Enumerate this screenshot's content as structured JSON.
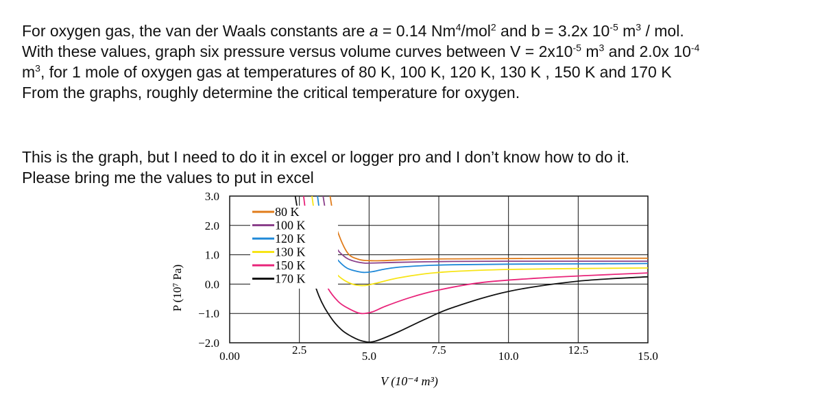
{
  "question": {
    "line1": [
      "For oxygen gas, the van der Waals constants are ",
      "a",
      " = 0.14 Nm",
      "4",
      "/mol",
      "2",
      " and b = 3.2x 10",
      "-5",
      " m",
      "3",
      " / mol."
    ],
    "line2": [
      "With these values, graph six pressure versus volume curves between V = 2x10",
      "-5",
      " m",
      "3",
      " and 2.0x 10",
      "-4"
    ],
    "line3": [
      "m",
      "3",
      ", for 1 mole of oxygen gas at temperatures of 80 K, 100 K, 120 K, 130 K , 150 K and 170 K"
    ],
    "line4": "From the graphs, roughly determine the critical temperature for oxygen."
  },
  "request": {
    "line1": "This is the graph, but I need to do it in excel or logger pro and I don’t know how to do it.",
    "line2": "Please bring me the values to put in excel"
  },
  "chart_data": {
    "type": "line",
    "xlabel": "V (10⁻⁴ m³)",
    "ylabel": "P (10⁷ Pa)",
    "xlim": [
      0,
      15
    ],
    "ylim": [
      -2,
      3
    ],
    "x_ticks": [
      "0.00",
      "2.5",
      "5.0",
      "7.5",
      "10.0",
      "12.5",
      "15.0"
    ],
    "y_ticks": [
      "3.0",
      "2.0",
      "1.0",
      "0.0",
      "−1.0",
      "−2.0"
    ],
    "grid": true,
    "legend_position": "top-left",
    "series": [
      {
        "name": "80 K",
        "color": "#e07b1a",
        "x": [
          3.6,
          3.8,
          4.2,
          4.6,
          5.0,
          5.5,
          6.0,
          7.0,
          8.0,
          10.0,
          12.5,
          15.0
        ],
        "y": [
          3.0,
          2.0,
          1.1,
          0.85,
          0.8,
          0.8,
          0.82,
          0.85,
          0.86,
          0.87,
          0.88,
          0.88
        ]
      },
      {
        "name": "100 K",
        "color": "#8a3f8a",
        "x": [
          3.35,
          3.5,
          3.8,
          4.1,
          4.4,
          4.8,
          5.2,
          6.0,
          7.0,
          8.0,
          10.0,
          12.5,
          15.0
        ],
        "y": [
          3.0,
          2.2,
          1.3,
          0.95,
          0.8,
          0.72,
          0.72,
          0.74,
          0.76,
          0.77,
          0.78,
          0.78,
          0.78
        ]
      },
      {
        "name": "120 K",
        "color": "#1e88d8",
        "x": [
          3.15,
          3.3,
          3.6,
          3.9,
          4.2,
          4.5,
          4.8,
          5.1,
          5.5,
          6.0,
          7.0,
          8.0,
          10.0,
          12.5,
          15.0
        ],
        "y": [
          3.0,
          2.1,
          1.2,
          0.8,
          0.55,
          0.45,
          0.4,
          0.42,
          0.5,
          0.57,
          0.63,
          0.66,
          0.68,
          0.69,
          0.7
        ]
      },
      {
        "name": "130 K",
        "color": "#f7e416",
        "x": [
          2.95,
          3.1,
          3.4,
          3.7,
          4.0,
          4.4,
          4.8,
          5.2,
          6.0,
          7.0,
          8.0,
          10.0,
          12.5,
          15.0
        ],
        "y": [
          3.0,
          2.1,
          1.0,
          0.5,
          0.2,
          0.0,
          -0.05,
          0.02,
          0.2,
          0.35,
          0.43,
          0.5,
          0.53,
          0.55
        ]
      },
      {
        "name": "150 K",
        "color": "#e8247a",
        "x": [
          2.65,
          2.8,
          3.1,
          3.5,
          3.9,
          4.3,
          4.7,
          5.1,
          5.6,
          6.5,
          7.5,
          9.0,
          11.0,
          13.0,
          15.0
        ],
        "y": [
          3.0,
          2.0,
          0.8,
          -0.1,
          -0.6,
          -0.85,
          -1.0,
          -0.95,
          -0.75,
          -0.45,
          -0.2,
          0.05,
          0.2,
          0.3,
          0.38
        ]
      },
      {
        "name": "170 K",
        "color": "#111111",
        "x": [
          2.35,
          2.5,
          2.8,
          3.2,
          3.6,
          4.0,
          4.4,
          4.8,
          5.2,
          6.0,
          7.0,
          8.0,
          10.0,
          12.5,
          15.0
        ],
        "y": [
          3.0,
          2.2,
          0.8,
          -0.4,
          -1.1,
          -1.55,
          -1.8,
          -1.95,
          -1.95,
          -1.65,
          -1.2,
          -0.8,
          -0.25,
          0.1,
          0.25
        ]
      }
    ]
  }
}
